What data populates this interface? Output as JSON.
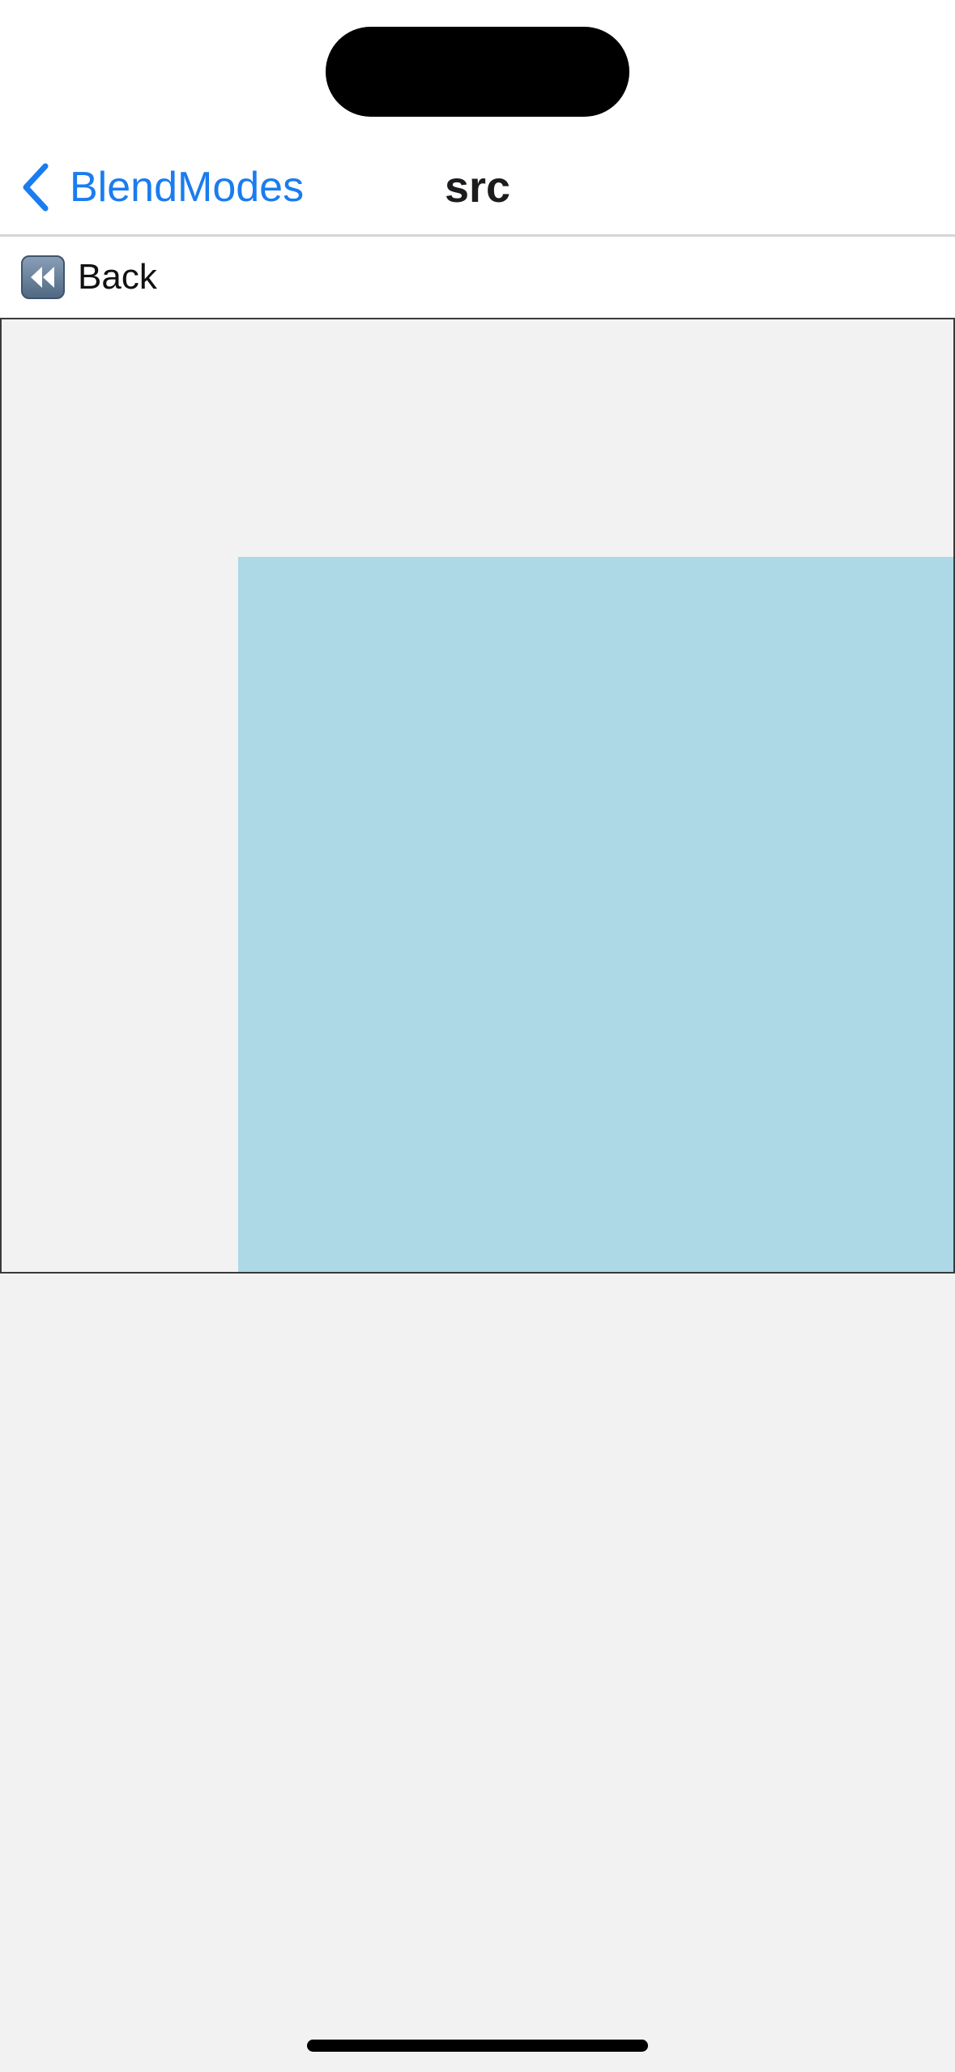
{
  "nav": {
    "back_label": "BlendModes",
    "title": "src",
    "accent_color": "#1a7cf0",
    "back_icon": "chevron-left-icon"
  },
  "toolbar": {
    "back_label": "Back",
    "back_icon": "rewind-icon"
  },
  "canvas": {
    "background_color": "#f2f2f2",
    "source_color": "#add8e6"
  }
}
